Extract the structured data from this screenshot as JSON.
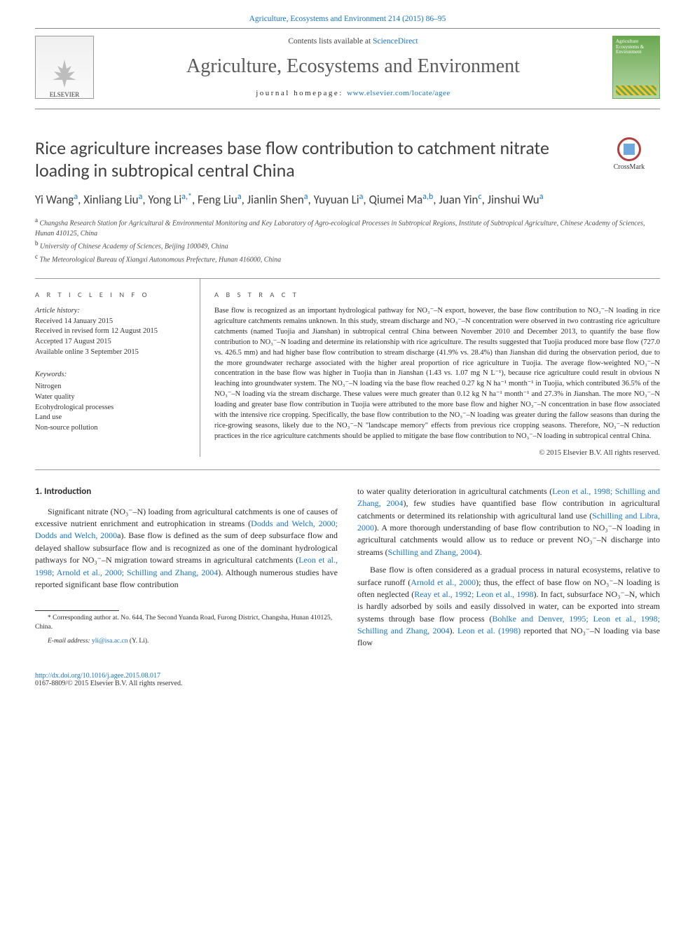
{
  "colors": {
    "link": "#1773c6",
    "text": "#2b2b2b",
    "rule": "#999",
    "cover_green": "#6aa84f"
  },
  "typography": {
    "body_font": "Georgia, serif",
    "heading_font": "Calibri, sans-serif",
    "title_fontsize": 26,
    "journal_name_fontsize": 28,
    "abstract_fontsize": 10.5,
    "body_fontsize": 12
  },
  "header": {
    "citation": "Agriculture, Ecosystems and Environment 214 (2015) 86–95",
    "contents": "Contents lists available at ",
    "contents_link": "ScienceDirect",
    "journal_name": "Agriculture, Ecosystems and Environment",
    "homepage_label": "journal homepage: ",
    "homepage_link": "www.elsevier.com/locate/agee",
    "publisher_logo": "ELSEVIER",
    "cover_caption": "Agriculture Ecosystems & Environment"
  },
  "article": {
    "title": "Rice agriculture increases base flow contribution to catchment nitrate loading in subtropical central China",
    "crossmark": "CrossMark",
    "authors_html": "Yi Wang<sup class='aff'>a</sup>, Xinliang Liu<sup class='aff'>a</sup>, Yong Li<sup class='aff'>a,*</sup>, Feng Liu<sup class='aff'>a</sup>, Jianlin Shen<sup class='aff'>a</sup>, Yuyuan Li<sup class='aff'>a</sup>, Qiumei Ma<sup class='aff'>a,b</sup>, Juan Yin<sup class='aff'>c</sup>, Jinshui Wu<sup class='aff'>a</sup>",
    "affiliations": [
      {
        "lbl": "a",
        "text": "Changsha Research Station for Agricultural & Environmental Monitoring and Key Laboratory of Agro-ecological Processes in Subtropical Regions, Institute of Subtropical Agriculture, Chinese Academy of Sciences, Hunan 410125, China"
      },
      {
        "lbl": "b",
        "text": "University of Chinese Academy of Sciences, Beijing 100049, China"
      },
      {
        "lbl": "c",
        "text": "The Meteorological Bureau of Xiangxi Autonomous Prefecture, Hunan 416000, China"
      }
    ]
  },
  "article_info": {
    "heading": "A R T I C L E   I N F O",
    "history_label": "Article history:",
    "history": [
      "Received 14 January 2015",
      "Received in revised form 12 August 2015",
      "Accepted 17 August 2015",
      "Available online 3 September 2015"
    ],
    "keywords_label": "Keywords:",
    "keywords": [
      "Nitrogen",
      "Water quality",
      "Ecohydrological processes",
      "Land use",
      "Non-source pollution"
    ]
  },
  "abstract": {
    "heading": "A B S T R A C T",
    "text": "Base flow is recognized as an important hydrological pathway for NO₃⁻–N export, however, the base flow contribution to NO₃⁻–N loading in rice agriculture catchments remains unknown. In this study, stream discharge and NO₃⁻–N concentration were observed in two contrasting rice agriculture catchments (named Tuojia and Jianshan) in subtropical central China between November 2010 and December 2013, to quantify the base flow contribution to NO₃⁻–N loading and determine its relationship with rice agriculture. The results suggested that Tuojia produced more base flow (727.0 vs. 426.5 mm) and had higher base flow contribution to stream discharge (41.9% vs. 28.4%) than Jianshan did during the observation period, due to the more groundwater recharge associated with the higher areal proportion of rice agriculture in Tuojia. The average flow-weighted NO₃⁻–N concentration in the base flow was higher in Tuojia than in Jianshan (1.43 vs. 1.07 mg N L⁻¹), because rice agriculture could result in obvious N leaching into groundwater system. The NO₃⁻–N loading via the base flow reached 0.27 kg N ha⁻¹ month⁻¹ in Tuojia, which contributed 36.5% of the NO₃⁻–N loading via the stream discharge. These values were much greater than 0.12 kg N ha⁻¹ month⁻¹ and 27.3% in Jianshan. The more NO₃⁻–N loading and greater base flow contribution in Tuojia were attributed to the more base flow and higher NO₃⁻–N concentration in base flow associated with the intensive rice cropping. Specifically, the base flow contribution to the NO₃⁻–N loading was greater during the fallow seasons than during the rice-growing seasons, likely due to the NO₃⁻–N \"landscape memory\" effects from previous rice cropping seasons. Therefore, NO₃⁻–N reduction practices in the rice agriculture catchments should be applied to mitigate the base flow contribution to NO₃⁻–N loading in subtropical central China.",
    "copyright": "© 2015 Elsevier B.V. All rights reserved."
  },
  "intro": {
    "heading": "1. Introduction",
    "p1": "Significant nitrate (NO₃⁻–N) loading from agricultural catchments is one of causes of excessive nutrient enrichment and eutrophication in streams (",
    "p1_link1": "Dodds and Welch, 2000; Dodds and Welch, 2000",
    "p1_mid": "a). Base flow is defined as the sum of deep subsurface flow and delayed shallow subsurface flow and is recognized as one of the dominant hydrological pathways for NO₃⁻–N migration toward streams in agricultural catchments (",
    "p1_link2": "Leon et al., 1998; Arnold et al., 2000; Schilling and Zhang, 2004",
    "p1_end": "). Although numerous studies have reported significant base flow contribution",
    "p2_start": "to water quality deterioration in agricultural catchments (",
    "p2_link1": "Leon et al., 1998; Schilling and Zhang, 2004",
    "p2_mid1": "), few studies have quantified base flow contribution in agricultural catchments or determined its relationship with agricultural land use (",
    "p2_link2": "Schilling and Libra, 2000",
    "p2_mid2": "). A more thorough understanding of base flow contribution to NO₃⁻–N loading in agricultural catchments would allow us to reduce or prevent NO₃⁻–N discharge into streams (",
    "p2_link3": "Schilling and Zhang, 2004",
    "p2_end": ").",
    "p3_start": "Base flow is often considered as a gradual process in natural ecosystems, relative to surface runoff (",
    "p3_link1": "Arnold et al., 2000",
    "p3_mid1": "); thus, the effect of base flow on NO₃⁻–N loading is often neglected (",
    "p3_link2": "Reay et al., 1992; Leon et al., 1998",
    "p3_mid2": "). In fact, subsurface NO₃⁻–N, which is hardly adsorbed by soils and easily dissolved in water, can be exported into stream systems through base flow process (",
    "p3_link3": "Bohlke and Denver, 1995; Leon et al., 1998; Schilling and Zhang, 2004",
    "p3_mid3": "). ",
    "p3_link4": "Leon et al. (1998)",
    "p3_end": " reported that NO₃⁻–N loading via base flow"
  },
  "footnote": {
    "corresponding": "* Corresponding author at. No. 644, The Second Yuanda Road, Furong District, Changsha, Hunan 410125, China.",
    "email_label": "E-mail address: ",
    "email": "yli@isa.ac.cn",
    "email_who": " (Y. Li)."
  },
  "footer": {
    "doi": "http://dx.doi.org/10.1016/j.agee.2015.08.017",
    "issn_line": "0167-8809/© 2015 Elsevier B.V. All rights reserved."
  }
}
